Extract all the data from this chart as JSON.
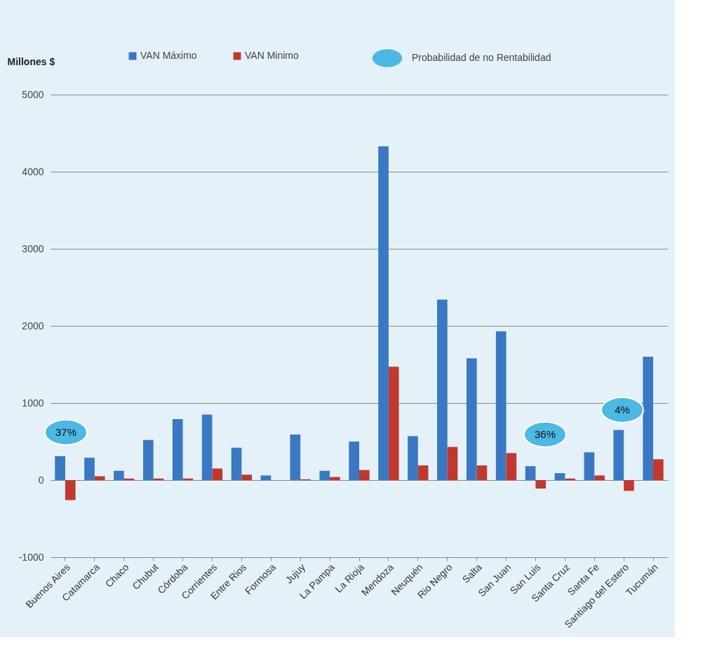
{
  "chart_data": {
    "type": "bar",
    "ylabel": "Millones $",
    "categories": [
      "Buenos Aires",
      "Catamarca",
      "Chaco",
      "Chubut",
      "Córdoba",
      "Corrientes",
      "Entre Rios",
      "Formosa",
      "Jujuy",
      "La Pampa",
      "La Rioja",
      "Mendoza",
      "Neuquén",
      "Rio Negro",
      "Salta",
      "San Juan",
      "San Luis",
      "Santa Cruz",
      "Santa Fe",
      "Santiago del Estero",
      "Tucumán"
    ],
    "series": [
      {
        "name": "VAN Máximo",
        "color": "#3a78c3",
        "values": [
          310,
          290,
          120,
          520,
          790,
          850,
          420,
          60,
          590,
          120,
          500,
          4330,
          570,
          2340,
          1580,
          1930,
          180,
          90,
          360,
          650,
          1600
        ]
      },
      {
        "name": "VAN Minimo",
        "color": "#c0392f",
        "values": [
          -260,
          50,
          20,
          20,
          20,
          150,
          70,
          0,
          10,
          40,
          130,
          1470,
          190,
          430,
          190,
          350,
          -110,
          20,
          60,
          -140,
          270
        ]
      }
    ],
    "annotations": [
      "Probabilidad de no Rentabilidad",
      "37%",
      "36%",
      "4%"
    ],
    "ylim": [
      -1000,
      5000
    ],
    "yticks": [
      -1000,
      0,
      1000,
      2000,
      3000,
      4000,
      5000
    ],
    "grid": "y",
    "legend": "top"
  }
}
